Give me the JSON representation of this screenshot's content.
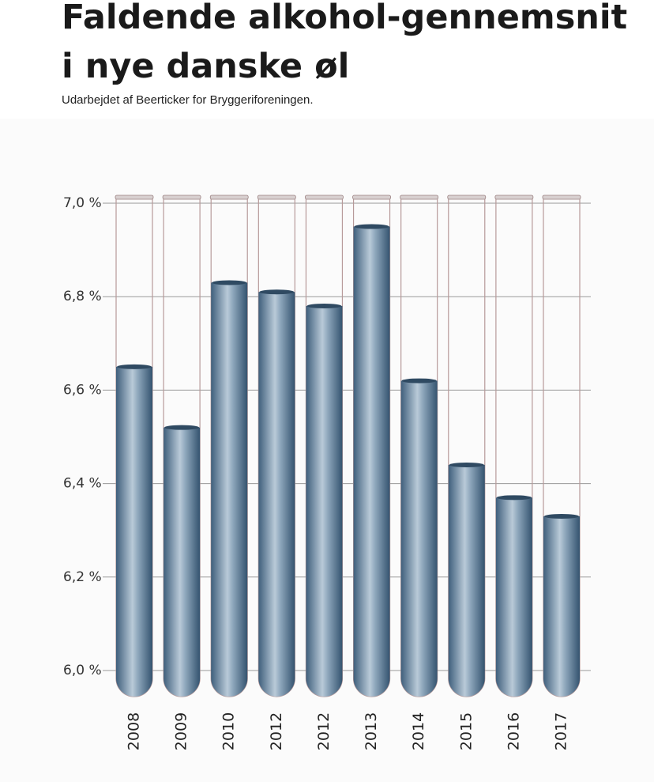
{
  "chart_data": {
    "type": "bar",
    "title": [
      "Faldende alkohol-gennemsnit",
      "i nye danske øl"
    ],
    "subtitle": "Udarbejdet af Beerticker for Bryggeriforeningen.",
    "categories": [
      "2008",
      "2009",
      "2010",
      "2012",
      "2012",
      "2013",
      "2014",
      "2015",
      "2016",
      "2017"
    ],
    "values": [
      6.65,
      6.52,
      6.83,
      6.81,
      6.78,
      6.95,
      6.62,
      6.44,
      6.37,
      6.33
    ],
    "color": "#4e6f8c",
    "ylim": [
      6.0,
      7.0
    ],
    "yticks": [
      {
        "value": 6.0,
        "label": "6,0 %"
      },
      {
        "value": 6.2,
        "label": "6,2 %"
      },
      {
        "value": 6.4,
        "label": "6,4 %"
      },
      {
        "value": 6.6,
        "label": "6,6 %"
      },
      {
        "value": 6.8,
        "label": "6,8 %"
      },
      {
        "value": 7.0,
        "label": "7,0 %"
      }
    ],
    "grid": true
  }
}
